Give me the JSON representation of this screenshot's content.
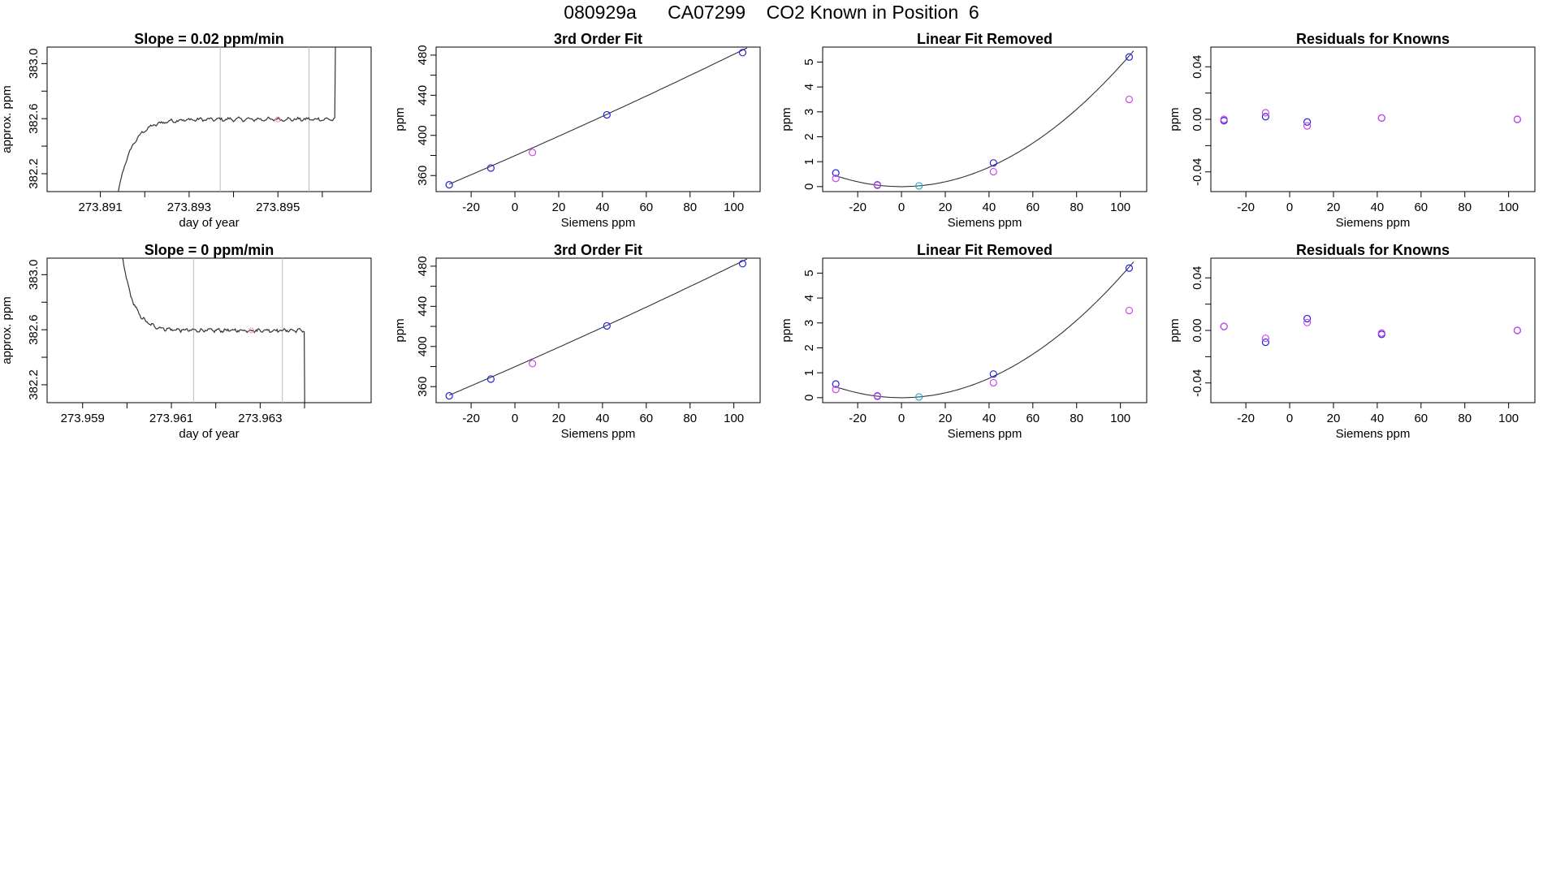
{
  "page": {
    "title": "080929a      CA07299    CO2 Known in Position  6"
  },
  "colors": {
    "blue": "#2222dd",
    "magenta": "#cc44ee",
    "cyan": "#22aacc",
    "pink": "#ff99bb",
    "line": "#333333",
    "vline": "#bbbbbb"
  },
  "chart_data": [
    {
      "type": "line",
      "title": "Slope =  0.02  ppm/min",
      "xlabel": "day of year",
      "ylabel": "approx. ppm",
      "xlim": [
        273.8898,
        273.8971
      ],
      "ylim": [
        382.07,
        383.12
      ],
      "xticks": [
        273.891,
        273.892,
        273.893,
        273.894,
        273.895,
        273.896
      ],
      "xtick_labels": [
        "273.891",
        "",
        "273.893",
        "",
        "273.895",
        ""
      ],
      "yticks": [
        382.2,
        382.4,
        382.6,
        382.8,
        383.0
      ],
      "ytick_labels": [
        "382.2",
        "",
        "382.6",
        "",
        "383.0"
      ],
      "vlines": [
        273.8937,
        273.8957
      ],
      "trace": "slope_rise",
      "trace_range": [
        273.8912,
        273.8966
      ],
      "edge_x": 273.8963,
      "level": 382.595
    },
    {
      "type": "scatter_fit",
      "title": "3rd Order Fit",
      "xlabel": "Siemens ppm",
      "ylabel": "ppm",
      "xlim": [
        -36,
        112
      ],
      "ylim": [
        344,
        488
      ],
      "xticks": [
        -20,
        0,
        20,
        40,
        60,
        80,
        100
      ],
      "xtick_labels": [
        "-20",
        "0",
        "20",
        "40",
        "60",
        "80",
        "100"
      ],
      "yticks": [
        360,
        380,
        400,
        420,
        440,
        460,
        480
      ],
      "ytick_labels": [
        "360",
        "",
        "400",
        "",
        "440",
        "",
        "480"
      ],
      "fit": {
        "a": 379.8,
        "b": 0.96,
        "c": 0.0005,
        "x0": -30,
        "x1": 106
      },
      "points": [
        {
          "x": -30,
          "y": 350.8,
          "color": "blue"
        },
        {
          "x": -11,
          "y": 367.5,
          "color": "blue"
        },
        {
          "x": 8,
          "y": 383,
          "color": "magenta"
        },
        {
          "x": 42,
          "y": 420.5,
          "color": "blue"
        },
        {
          "x": 104,
          "y": 482.5,
          "color": "blue"
        }
      ]
    },
    {
      "type": "scatter_fit",
      "title": "Linear Fit Removed",
      "xlabel": "Siemens ppm",
      "ylabel": "ppm",
      "xlim": [
        -36,
        112
      ],
      "ylim": [
        -0.2,
        5.6
      ],
      "xticks": [
        -20,
        0,
        20,
        40,
        60,
        80,
        100
      ],
      "xtick_labels": [
        "-20",
        "0",
        "20",
        "40",
        "60",
        "80",
        "100"
      ],
      "yticks": [
        0,
        1,
        2,
        3,
        4,
        5
      ],
      "ytick_labels": [
        "0",
        "1",
        "2",
        "3",
        "4",
        "5"
      ],
      "fit": {
        "a": 0,
        "b": 0,
        "c": 0.000485,
        "x0": -30,
        "x1": 106
      },
      "points": [
        {
          "x": -30,
          "y": 0.55,
          "color": "blue"
        },
        {
          "x": -30,
          "y": 0.33,
          "color": "magenta"
        },
        {
          "x": -11,
          "y": 0.07,
          "color": "blue"
        },
        {
          "x": -11,
          "y": 0.05,
          "color": "magenta"
        },
        {
          "x": 8,
          "y": 0.03,
          "color": "cyan"
        },
        {
          "x": 42,
          "y": 0.95,
          "color": "blue"
        },
        {
          "x": 42,
          "y": 0.6,
          "color": "magenta"
        },
        {
          "x": 104,
          "y": 5.2,
          "color": "blue"
        },
        {
          "x": 104,
          "y": 3.5,
          "color": "magenta"
        }
      ]
    },
    {
      "type": "scatter",
      "title": "Residuals for Knowns",
      "xlabel": "Siemens ppm",
      "ylabel": "ppm",
      "xlim": [
        -36,
        112
      ],
      "ylim": [
        -0.055,
        0.055
      ],
      "xticks": [
        -20,
        0,
        20,
        40,
        60,
        80,
        100
      ],
      "xtick_labels": [
        "-20",
        "0",
        "20",
        "40",
        "60",
        "80",
        "100"
      ],
      "yticks": [
        -0.04,
        -0.02,
        0,
        0.02,
        0.04
      ],
      "ytick_labels": [
        "-0.04",
        "",
        "0.00",
        "",
        "0.04"
      ],
      "points": [
        {
          "x": -30,
          "y": -0.001,
          "color": "blue"
        },
        {
          "x": -30,
          "y": 0.0,
          "color": "magenta"
        },
        {
          "x": -11,
          "y": 0.002,
          "color": "blue"
        },
        {
          "x": -11,
          "y": 0.005,
          "color": "magenta"
        },
        {
          "x": 8,
          "y": -0.002,
          "color": "blue"
        },
        {
          "x": 8,
          "y": -0.005,
          "color": "magenta"
        },
        {
          "x": 42,
          "y": 0.001,
          "color": "blue"
        },
        {
          "x": 42,
          "y": 0.001,
          "color": "magenta"
        },
        {
          "x": 104,
          "y": 0.0,
          "color": "blue"
        },
        {
          "x": 104,
          "y": 0.0,
          "color": "magenta"
        }
      ]
    },
    {
      "type": "line",
      "title": "Slope =  0  ppm/min",
      "xlabel": "day of year",
      "ylabel": "approx. ppm",
      "xlim": [
        273.9582,
        273.9655
      ],
      "ylim": [
        382.07,
        383.12
      ],
      "xticks": [
        273.959,
        273.96,
        273.961,
        273.962,
        273.963,
        273.964
      ],
      "xtick_labels": [
        "273.959",
        "",
        "273.961",
        "",
        "273.963",
        ""
      ],
      "yticks": [
        382.2,
        382.4,
        382.6,
        382.8,
        383.0
      ],
      "ytick_labels": [
        "382.2",
        "",
        "382.6",
        "",
        "383.0"
      ],
      "vlines": [
        273.9615,
        273.9635
      ],
      "trace": "slope_fall",
      "trace_range": [
        273.9598,
        273.9643
      ],
      "edge_x": 273.964,
      "level": 382.595
    },
    {
      "type": "scatter_fit",
      "title": "3rd Order Fit",
      "xlabel": "Siemens ppm",
      "ylabel": "ppm",
      "xlim": [
        -36,
        112
      ],
      "ylim": [
        344,
        488
      ],
      "xticks": [
        -20,
        0,
        20,
        40,
        60,
        80,
        100
      ],
      "xtick_labels": [
        "-20",
        "0",
        "20",
        "40",
        "60",
        "80",
        "100"
      ],
      "yticks": [
        360,
        380,
        400,
        420,
        440,
        460,
        480
      ],
      "ytick_labels": [
        "360",
        "",
        "400",
        "",
        "440",
        "",
        "480"
      ],
      "fit": {
        "a": 379.8,
        "b": 0.96,
        "c": 0.0005,
        "x0": -30,
        "x1": 106
      },
      "points": [
        {
          "x": -30,
          "y": 350.8,
          "color": "blue"
        },
        {
          "x": -11,
          "y": 367.5,
          "color": "blue"
        },
        {
          "x": 8,
          "y": 383,
          "color": "magenta"
        },
        {
          "x": 42,
          "y": 420.5,
          "color": "blue"
        },
        {
          "x": 104,
          "y": 482.5,
          "color": "blue"
        }
      ]
    },
    {
      "type": "scatter_fit",
      "title": "Linear Fit Removed",
      "xlabel": "Siemens ppm",
      "ylabel": "ppm",
      "xlim": [
        -36,
        112
      ],
      "ylim": [
        -0.2,
        5.6
      ],
      "xticks": [
        -20,
        0,
        20,
        40,
        60,
        80,
        100
      ],
      "xtick_labels": [
        "-20",
        "0",
        "20",
        "40",
        "60",
        "80",
        "100"
      ],
      "yticks": [
        0,
        1,
        2,
        3,
        4,
        5
      ],
      "ytick_labels": [
        "0",
        "1",
        "2",
        "3",
        "4",
        "5"
      ],
      "fit": {
        "a": 0,
        "b": 0,
        "c": 0.000485,
        "x0": -30,
        "x1": 106
      },
      "points": [
        {
          "x": -30,
          "y": 0.55,
          "color": "blue"
        },
        {
          "x": -30,
          "y": 0.33,
          "color": "magenta"
        },
        {
          "x": -11,
          "y": 0.07,
          "color": "blue"
        },
        {
          "x": -11,
          "y": 0.05,
          "color": "magenta"
        },
        {
          "x": 8,
          "y": 0.03,
          "color": "cyan"
        },
        {
          "x": 42,
          "y": 0.95,
          "color": "blue"
        },
        {
          "x": 42,
          "y": 0.6,
          "color": "magenta"
        },
        {
          "x": 104,
          "y": 5.2,
          "color": "blue"
        },
        {
          "x": 104,
          "y": 3.5,
          "color": "magenta"
        }
      ]
    },
    {
      "type": "scatter",
      "title": "Residuals for Knowns",
      "xlabel": "Siemens ppm",
      "ylabel": "ppm",
      "xlim": [
        -36,
        112
      ],
      "ylim": [
        -0.055,
        0.055
      ],
      "xticks": [
        -20,
        0,
        20,
        40,
        60,
        80,
        100
      ],
      "xtick_labels": [
        "-20",
        "0",
        "20",
        "40",
        "60",
        "80",
        "100"
      ],
      "yticks": [
        -0.04,
        -0.02,
        0,
        0.02,
        0.04
      ],
      "ytick_labels": [
        "-0.04",
        "",
        "0.00",
        "",
        "0.04"
      ],
      "points": [
        {
          "x": -30,
          "y": 0.003,
          "color": "blue"
        },
        {
          "x": -30,
          "y": 0.003,
          "color": "magenta"
        },
        {
          "x": -11,
          "y": -0.009,
          "color": "blue"
        },
        {
          "x": -11,
          "y": -0.006,
          "color": "magenta"
        },
        {
          "x": 8,
          "y": 0.009,
          "color": "blue"
        },
        {
          "x": 8,
          "y": 0.006,
          "color": "magenta"
        },
        {
          "x": 42,
          "y": -0.003,
          "color": "blue"
        },
        {
          "x": 42,
          "y": -0.002,
          "color": "magenta"
        },
        {
          "x": 104,
          "y": 0.0,
          "color": "blue"
        },
        {
          "x": 104,
          "y": 0.0,
          "color": "magenta"
        }
      ]
    }
  ]
}
